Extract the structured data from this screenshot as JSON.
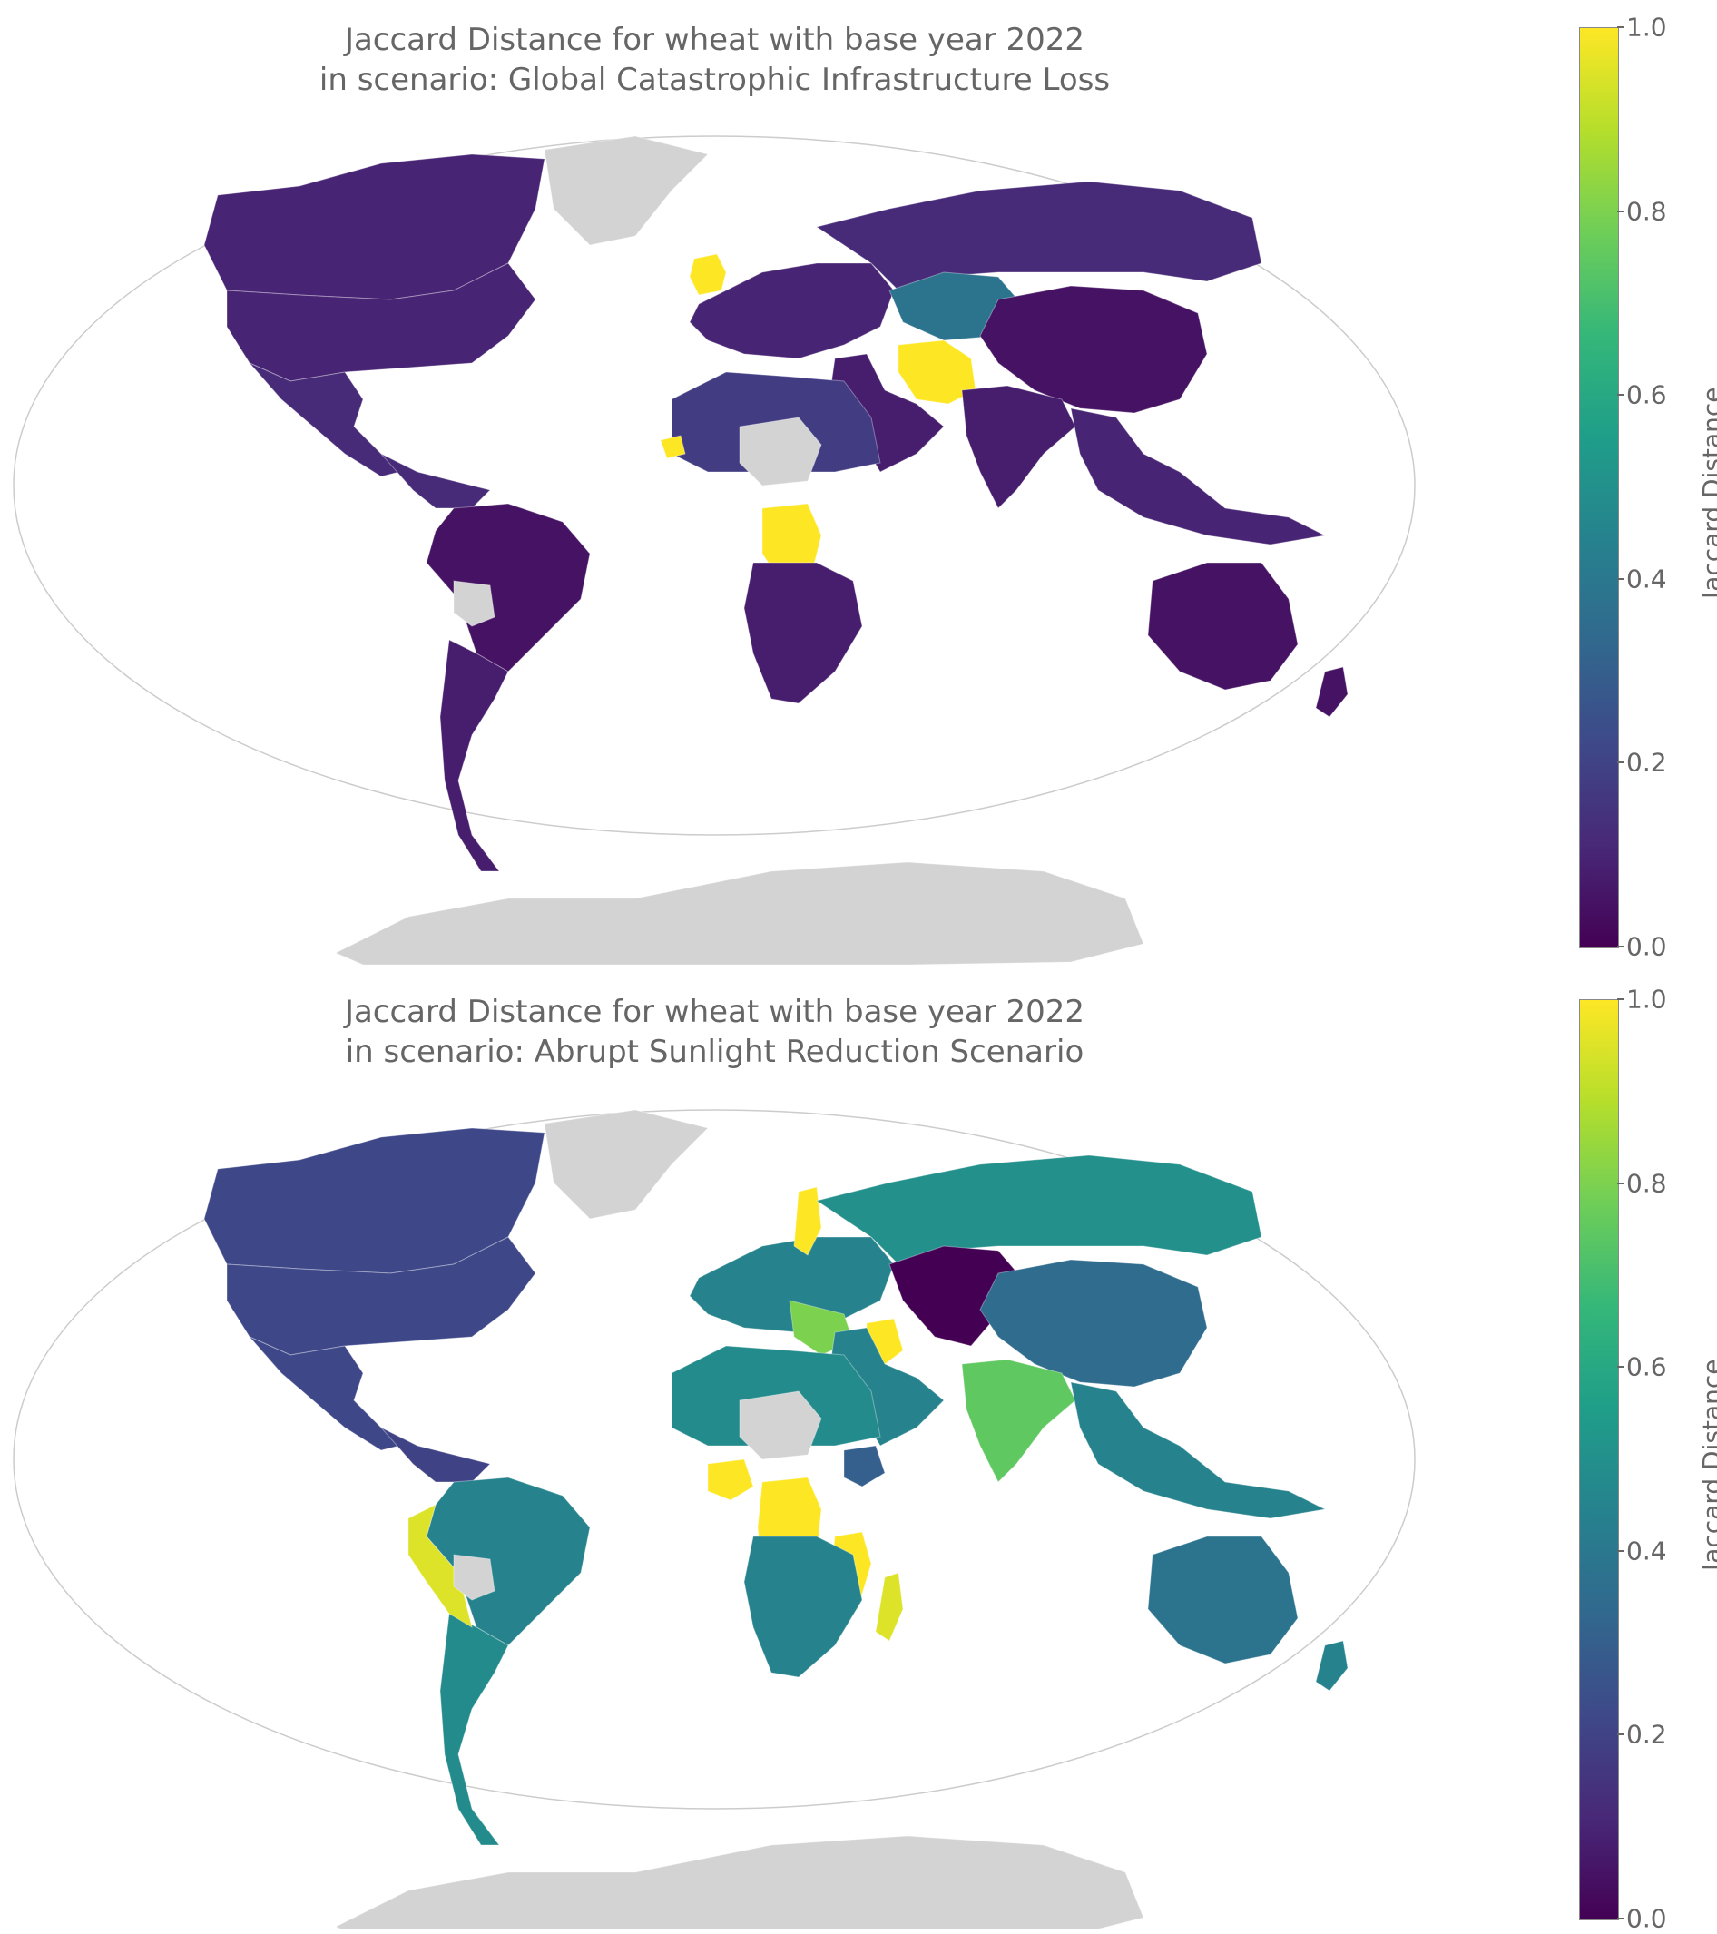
{
  "figure": {
    "colormap": "viridis",
    "no_data_color": "#d3d3d3",
    "maps": [
      {
        "title_line1": "Jaccard Distance for wheat with base year 2022",
        "title_line2": "in scenario: Global Catastrophic Infrastructure Loss",
        "colorbar": {
          "label": "Jaccard Distance",
          "range": [
            0,
            1
          ],
          "ticks": [
            "0.0",
            "0.2",
            "0.4",
            "0.6",
            "0.8",
            "1.0"
          ]
        }
      },
      {
        "title_line1": "Jaccard Distance for wheat with base year 2022",
        "title_line2": "in scenario: Abrupt Sunlight Reduction Scenario",
        "colorbar": {
          "label": "Jaccard Distance",
          "range": [
            0,
            1
          ],
          "ticks": [
            "0.0",
            "0.2",
            "0.4",
            "0.6",
            "0.8",
            "1.0"
          ]
        }
      }
    ]
  },
  "chart_data": [
    {
      "type": "choropleth",
      "title": "Jaccard Distance for wheat with base year 2022 in scenario: Global Catastrophic Infrastructure Loss",
      "colorbar_label": "Jaccard Distance",
      "range": [
        0,
        1
      ],
      "regions": [
        {
          "name": "Canada",
          "value": 0.1
        },
        {
          "name": "United States",
          "value": 0.1
        },
        {
          "name": "Mexico",
          "value": 0.12
        },
        {
          "name": "Central America",
          "value": 0.12
        },
        {
          "name": "Brazil",
          "value": 0.05
        },
        {
          "name": "Argentina",
          "value": 0.08
        },
        {
          "name": "Bolivia",
          "value": null
        },
        {
          "name": "Greenland",
          "value": null
        },
        {
          "name": "Antarctica",
          "value": null
        },
        {
          "name": "United Kingdom",
          "value": 1.0
        },
        {
          "name": "Europe",
          "value": 0.1
        },
        {
          "name": "Russia",
          "value": 0.12
        },
        {
          "name": "Kazakhstan",
          "value": 0.38
        },
        {
          "name": "Iran",
          "value": 1.0
        },
        {
          "name": "China",
          "value": 0.05
        },
        {
          "name": "India",
          "value": 0.08
        },
        {
          "name": "Middle East",
          "value": 0.08
        },
        {
          "name": "North Africa",
          "value": 0.18
        },
        {
          "name": "Niger / Chad",
          "value": null
        },
        {
          "name": "Senegal / Gambia",
          "value": 1.0
        },
        {
          "name": "DR Congo",
          "value": 1.0
        },
        {
          "name": "Southern Africa",
          "value": 0.08
        },
        {
          "name": "Southeast Asia",
          "value": 0.1
        },
        {
          "name": "Australia",
          "value": 0.05
        },
        {
          "name": "New Zealand",
          "value": 0.05
        }
      ]
    },
    {
      "type": "choropleth",
      "title": "Jaccard Distance for wheat with base year 2022 in scenario: Abrupt Sunlight Reduction Scenario",
      "colorbar_label": "Jaccard Distance",
      "range": [
        0,
        1
      ],
      "regions": [
        {
          "name": "Canada",
          "value": 0.22
        },
        {
          "name": "United States",
          "value": 0.22
        },
        {
          "name": "Mexico",
          "value": 0.22
        },
        {
          "name": "Central America",
          "value": 0.2
        },
        {
          "name": "Brazil",
          "value": 0.45
        },
        {
          "name": "Argentina",
          "value": 0.48
        },
        {
          "name": "Peru",
          "value": 0.95
        },
        {
          "name": "Bolivia",
          "value": null
        },
        {
          "name": "Greenland",
          "value": null
        },
        {
          "name": "Antarctica",
          "value": null
        },
        {
          "name": "Europe",
          "value": 0.45
        },
        {
          "name": "Sweden",
          "value": 1.0
        },
        {
          "name": "Balkans / Italy",
          "value": 0.8
        },
        {
          "name": "Russia",
          "value": 0.5
        },
        {
          "name": "Kazakhstan / Central Asia",
          "value": 0.0
        },
        {
          "name": "Iraq",
          "value": 1.0
        },
        {
          "name": "China",
          "value": 0.35
        },
        {
          "name": "India",
          "value": 0.75
        },
        {
          "name": "Middle East",
          "value": 0.45
        },
        {
          "name": "Algeria",
          "value": 0.8
        },
        {
          "name": "North Africa",
          "value": 0.48
        },
        {
          "name": "Niger / Chad",
          "value": null
        },
        {
          "name": "Nigeria",
          "value": 1.0
        },
        {
          "name": "DR Congo / Angola",
          "value": 1.0
        },
        {
          "name": "Tanzania / Mozambique",
          "value": 1.0
        },
        {
          "name": "Madagascar",
          "value": 0.95
        },
        {
          "name": "Ethiopia",
          "value": 0.3
        },
        {
          "name": "Southern Africa",
          "value": 0.45
        },
        {
          "name": "Southeast Asia",
          "value": 0.45
        },
        {
          "name": "Australia",
          "value": 0.38
        },
        {
          "name": "New Zealand",
          "value": 0.45
        }
      ]
    }
  ]
}
